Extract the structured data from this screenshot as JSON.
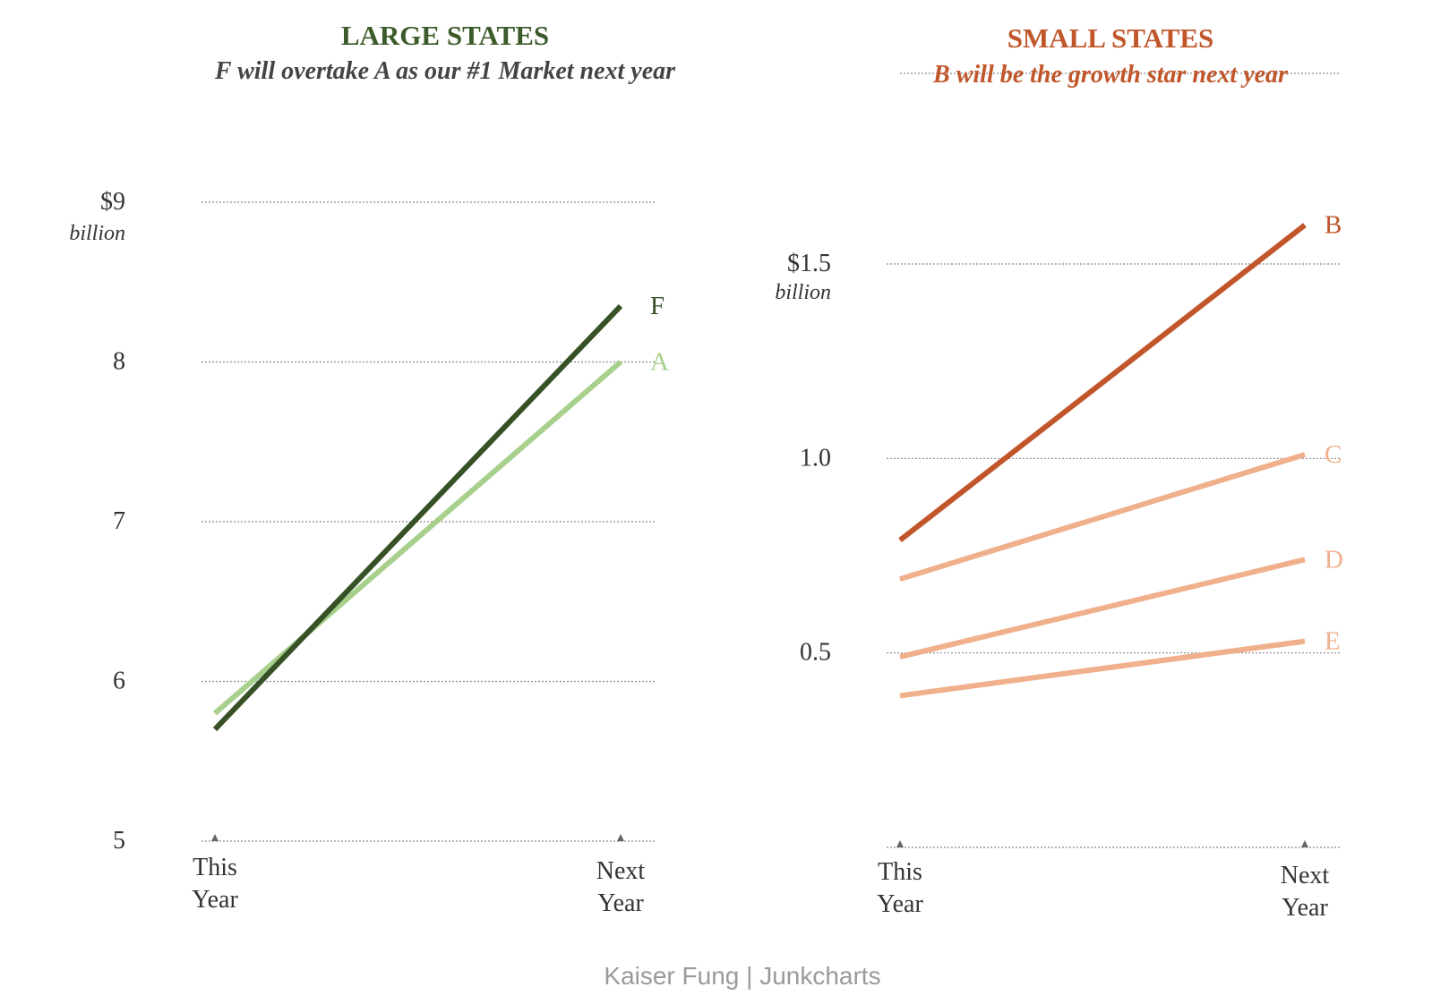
{
  "chart_data": [
    {
      "type": "line",
      "title": "LARGE STATES",
      "subtitle": "F will overtake A as our #1 Market next year",
      "title_color": "#3d5a2a",
      "subtitle_color": "#444444",
      "categories": [
        "This Year",
        "Next Year"
      ],
      "category_lines": [
        [
          "This",
          "Year"
        ],
        [
          "Next",
          "Year"
        ]
      ],
      "ylim": [
        5,
        9
      ],
      "y_ticks": [
        {
          "value": 9,
          "label": "$9"
        },
        {
          "value": 8,
          "label": "8"
        },
        {
          "value": 7,
          "label": "7"
        },
        {
          "value": 6,
          "label": "6"
        },
        {
          "value": 5,
          "label": "5"
        }
      ],
      "unit_label": "billion",
      "grid": true,
      "series": [
        {
          "name": "A",
          "values": [
            5.8,
            8.0
          ],
          "color": "#a8d08d"
        },
        {
          "name": "F",
          "values": [
            5.7,
            8.35
          ],
          "color": "#375127"
        }
      ]
    },
    {
      "type": "line",
      "title": "SMALL STATES",
      "subtitle": "B will be the growth star next year",
      "title_color": "#c0562a",
      "subtitle_color": "#c0562a",
      "categories": [
        "This Year",
        "Next Year"
      ],
      "category_lines": [
        [
          "This",
          "Year"
        ],
        [
          "Next",
          "Year"
        ]
      ],
      "ylim": [
        0,
        1.5
      ],
      "y_ticks": [
        {
          "value": 1.5,
          "label": "$1.5"
        },
        {
          "value": 1.0,
          "label": "1.0"
        },
        {
          "value": 0.5,
          "label": "0.5"
        }
      ],
      "unit_label": "billion",
      "grid": true,
      "series": [
        {
          "name": "E",
          "values": [
            0.39,
            0.53
          ],
          "color": "#f0b08c"
        },
        {
          "name": "D",
          "values": [
            0.49,
            0.74
          ],
          "color": "#f0b08c"
        },
        {
          "name": "C",
          "values": [
            0.69,
            1.01
          ],
          "color": "#f0b08c"
        },
        {
          "name": "B",
          "values": [
            0.79,
            1.6
          ],
          "color": "#c0562a"
        }
      ]
    }
  ],
  "footer": {
    "credit": "Kaiser Fung | Junkcharts"
  }
}
